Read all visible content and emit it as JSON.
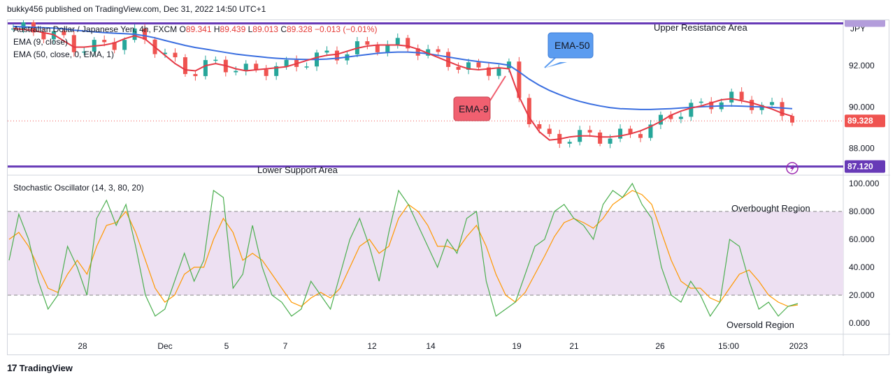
{
  "header": {
    "published": "bukky456 published on TradingView.com, Dec 31, 2022 14:50 UTC+1"
  },
  "symbol": {
    "name": "Australian Dollar / Japanese Yen, 4h, FXCM",
    "o_label": "O",
    "o": "89.341",
    "h_label": "H",
    "h": "89.439",
    "l_label": "L",
    "l": "89.013",
    "c_label": "C",
    "c": "89.328",
    "change": "−0.013 (−0.01%)"
  },
  "indicators": {
    "ema9": "EMA (9, close)",
    "ema50": "EMA (50, close, 0, EMA, 1)",
    "stoch": "Stochastic Oscillator (14, 3, 80, 20)"
  },
  "currency": "JPY",
  "colors": {
    "up": "#26a69a",
    "down": "#ef5350",
    "ema9": "#e53945",
    "ema50": "#3b6fe0",
    "level": "#673ab7",
    "stoch_k": "#4caf50",
    "stoch_d": "#ff9800",
    "band": "#ede0f2",
    "ema50_callout": "#5b9cf0",
    "ema9_callout": "#f06070"
  },
  "annotations": {
    "upper": "Upper Resistance Area",
    "lower": "Lower Support Area",
    "ema50": "EMA-50",
    "ema9": "EMA-9",
    "overbought": "Overbought Region",
    "oversold": "Oversold Region"
  },
  "price_tags": {
    "last": "89.328",
    "support": "87.120"
  },
  "footer": {
    "brand": "TradingView"
  },
  "chart_data": [
    {
      "type": "candlestick",
      "title": "Australian Dollar / Japanese Yen, 4h, FXCM",
      "ylim": [
        86.7,
        94.2
      ],
      "yticks": [
        "92.000",
        "90.000",
        "88.000"
      ],
      "xticks": [
        "28",
        "Dec",
        "5",
        "7",
        "12",
        "14",
        "19",
        "21",
        "26",
        "15:00",
        "2023"
      ],
      "levels": {
        "upper_resistance": 94.05,
        "lower_support": 87.12,
        "last": 89.328
      },
      "series": [
        {
          "name": "EMA (9, close)",
          "values": [
            93.8,
            93.75,
            93.7,
            93.6,
            93.5,
            93.2,
            92.9,
            92.9,
            92.95,
            93.0,
            93.1,
            93.3,
            93.45,
            93.3,
            92.9,
            92.5,
            92.1,
            91.8,
            91.75,
            92.0,
            92.1,
            92.0,
            91.85,
            91.75,
            91.8,
            91.85,
            91.9,
            91.95,
            92.1,
            92.25,
            92.4,
            92.5,
            92.55,
            92.7,
            92.85,
            92.95,
            93.0,
            93.0,
            93.0,
            92.95,
            92.8,
            92.6,
            92.4,
            92.2,
            92.0,
            91.85,
            91.8,
            91.85,
            91.9,
            91.85,
            90.5,
            89.5,
            88.8,
            88.4,
            88.45,
            88.55,
            88.6,
            88.6,
            88.55,
            88.55,
            88.6,
            88.7,
            88.85,
            89.05,
            89.3,
            89.6,
            89.8,
            89.95,
            90.05,
            90.2,
            90.35,
            90.4,
            90.3,
            90.2,
            90.05,
            89.9,
            89.7,
            89.55
          ]
        },
        {
          "name": "EMA (50, close, 0, EMA, 1)",
          "values": [
            93.9,
            93.88,
            93.86,
            93.84,
            93.82,
            93.78,
            93.72,
            93.68,
            93.64,
            93.6,
            93.57,
            93.55,
            93.52,
            93.45,
            93.35,
            93.22,
            93.1,
            92.98,
            92.88,
            92.8,
            92.72,
            92.64,
            92.56,
            92.5,
            92.45,
            92.4,
            92.36,
            92.33,
            92.31,
            92.3,
            92.3,
            92.32,
            92.36,
            92.42,
            92.48,
            92.54,
            92.6,
            92.64,
            92.66,
            92.66,
            92.63,
            92.58,
            92.5,
            92.42,
            92.34,
            92.26,
            92.2,
            92.15,
            92.1,
            92.02,
            91.7,
            91.35,
            91.05,
            90.8,
            90.6,
            90.42,
            90.27,
            90.15,
            90.05,
            89.97,
            89.92,
            89.9,
            89.88,
            89.88,
            89.9,
            89.92,
            89.95,
            89.98,
            90.01,
            90.03,
            90.05,
            90.05,
            90.04,
            90.02,
            90.0,
            89.98,
            89.95,
            89.92
          ]
        }
      ]
    },
    {
      "type": "line",
      "title": "Stochastic Oscillator (14, 3, 80, 20)",
      "ylim": [
        -8,
        106
      ],
      "yticks": [
        "100.000",
        "80.000",
        "60.000",
        "40.000",
        "20.000",
        "0.000"
      ],
      "band": [
        20,
        80
      ],
      "series": [
        {
          "name": "%K",
          "values": [
            45,
            78,
            60,
            30,
            10,
            20,
            55,
            40,
            20,
            75,
            88,
            70,
            85,
            55,
            20,
            5,
            10,
            30,
            50,
            30,
            45,
            95,
            90,
            25,
            35,
            70,
            40,
            20,
            15,
            5,
            10,
            30,
            20,
            10,
            35,
            60,
            75,
            55,
            30,
            65,
            95,
            85,
            70,
            55,
            40,
            60,
            50,
            75,
            80,
            30,
            5,
            10,
            15,
            35,
            55,
            60,
            80,
            85,
            75,
            70,
            60,
            85,
            95,
            90,
            100,
            85,
            75,
            40,
            20,
            15,
            30,
            20,
            5,
            15,
            60,
            55,
            30,
            10,
            15,
            5,
            12,
            14
          ]
        },
        {
          "name": "%D",
          "values": [
            60,
            65,
            55,
            40,
            25,
            22,
            35,
            45,
            35,
            55,
            70,
            72,
            80,
            65,
            45,
            25,
            15,
            20,
            35,
            40,
            40,
            60,
            75,
            65,
            45,
            50,
            45,
            35,
            25,
            15,
            12,
            18,
            22,
            18,
            25,
            40,
            55,
            60,
            50,
            55,
            75,
            85,
            80,
            70,
            55,
            55,
            52,
            62,
            70,
            55,
            35,
            20,
            15,
            22,
            35,
            48,
            62,
            72,
            75,
            72,
            68,
            75,
            85,
            90,
            95,
            92,
            85,
            65,
            45,
            30,
            25,
            25,
            18,
            15,
            25,
            35,
            38,
            30,
            20,
            15,
            12,
            13
          ]
        }
      ]
    }
  ]
}
